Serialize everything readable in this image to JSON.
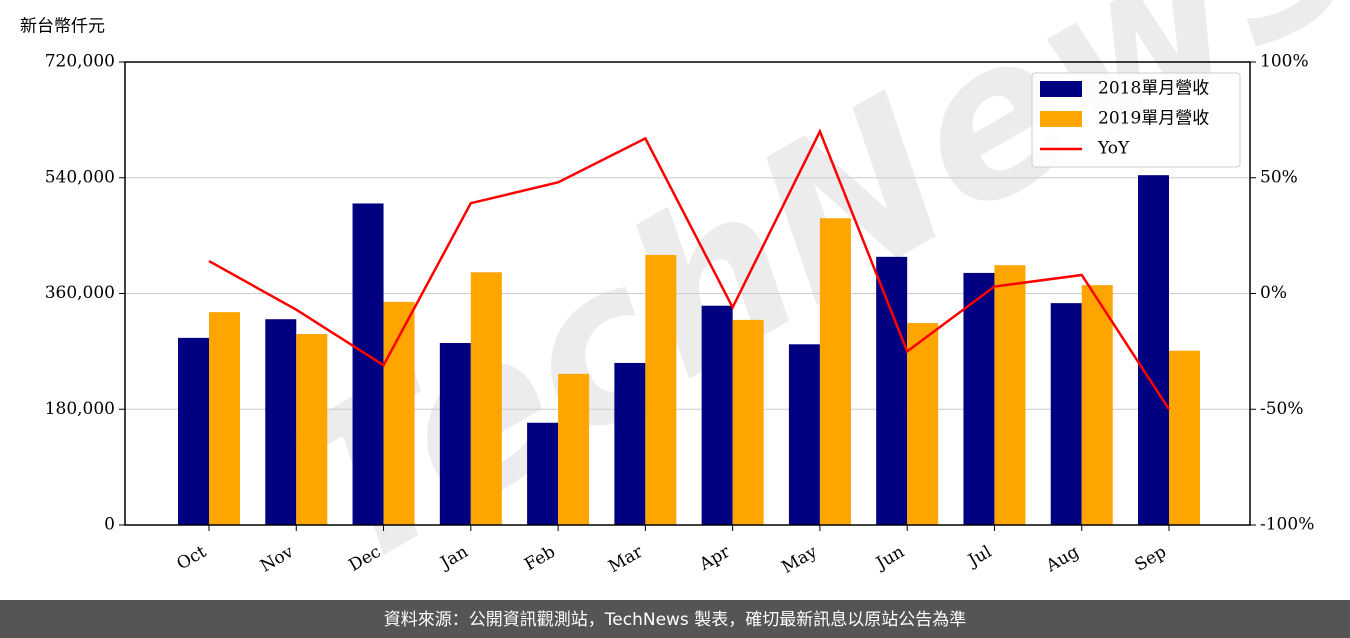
{
  "chart_data": {
    "type": "bar",
    "y_label": "新台幣仟元",
    "categories": [
      "Oct",
      "Nov",
      "Dec",
      "Jan",
      "Feb",
      "Mar",
      "Apr",
      "May",
      "Jun",
      "Jul",
      "Aug",
      "Sep"
    ],
    "series": [
      {
        "name": "2018單月營收",
        "color": "#000080",
        "values": [
          291000,
          320000,
          500000,
          283000,
          159000,
          252000,
          341000,
          281000,
          417000,
          392000,
          345000,
          544000
        ]
      },
      {
        "name": "2019單月營收",
        "color": "#ffa500",
        "values": [
          331000,
          297000,
          347000,
          393000,
          235000,
          420000,
          319000,
          477000,
          314000,
          404000,
          373000,
          271000
        ]
      },
      {
        "name": "YoY",
        "color": "#ff0000",
        "type": "line",
        "axis": "y2",
        "values": [
          14,
          -7,
          -31,
          39,
          48,
          67,
          -6,
          70,
          -25,
          3,
          8,
          -50
        ]
      }
    ],
    "ylim": [
      0,
      720000
    ],
    "yticks": [
      0,
      {
        "value": 180000,
        "label": "180,000"
      },
      {
        "value": 360000,
        "label": "360,000"
      },
      {
        "value": 540000,
        "label": "540,000"
      },
      {
        "value": 720000,
        "label": "720,000"
      }
    ],
    "y2lim": [
      -100,
      100
    ],
    "y2ticks": [
      {
        "value": -100,
        "label": "-100%"
      },
      {
        "value": -50,
        "label": "-50%"
      },
      {
        "value": 0,
        "label": "0%"
      },
      {
        "value": 50,
        "label": "50%"
      },
      {
        "value": 100,
        "label": "100%"
      }
    ],
    "grid": true,
    "legend": "upper right",
    "watermark": "TechNews",
    "footer": "資料來源：公開資訊觀測站，TechNews 製表，確切最新訊息以原站公告為準"
  }
}
